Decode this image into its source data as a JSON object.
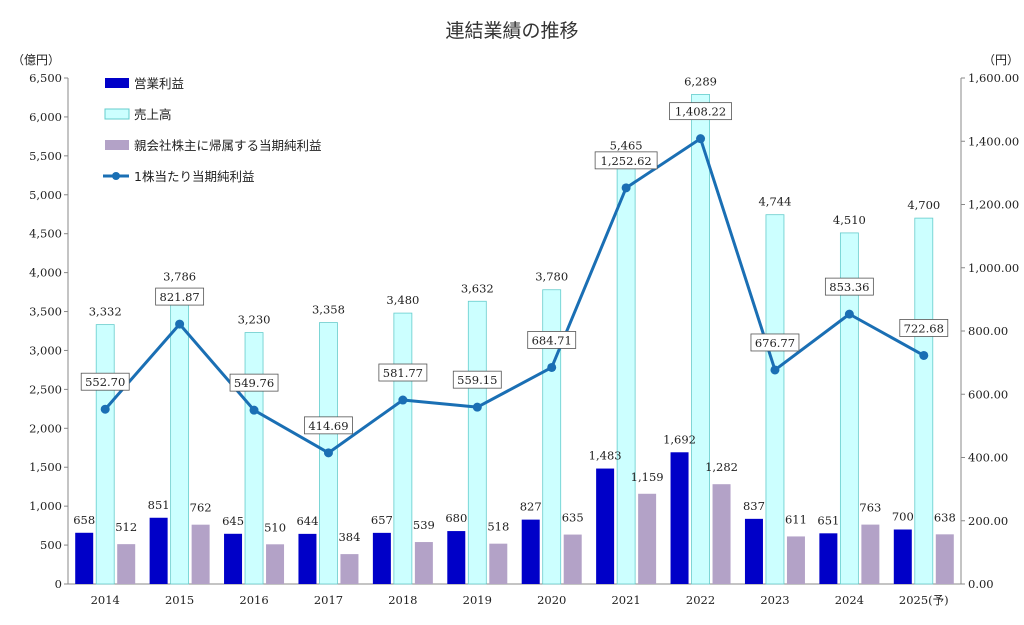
{
  "colors": {
    "operating_profit": "#0000c8",
    "sales_fill": "#ccffff",
    "sales_stroke": "#66cccc",
    "net_income": "#b3a2c7",
    "eps_line": "#1a6fb4",
    "axis": "#888888"
  },
  "chart_data": {
    "type": "bar",
    "title": "連結業績の推移",
    "y_left_unit": "（億円）",
    "y_right_unit": "（円）",
    "ylim_left": [
      0,
      6500
    ],
    "ylim_right": [
      0,
      1600
    ],
    "y_left_ticks": [
      "0",
      "500",
      "1,000",
      "1,500",
      "2,000",
      "2,500",
      "3,000",
      "3,500",
      "4,000",
      "4,500",
      "5,000",
      "5,500",
      "6,000",
      "6,500"
    ],
    "y_right_ticks": [
      "0.00",
      "200.00",
      "400.00",
      "600.00",
      "800.00",
      "1,000.00",
      "1,200.00",
      "1,400.00",
      "1,600.00"
    ],
    "categories": [
      "2014",
      "2015",
      "2016",
      "2017",
      "2018",
      "2019",
      "2020",
      "2021",
      "2022",
      "2023",
      "2024",
      "2025(予)"
    ],
    "series": [
      {
        "name": "営業利益",
        "axis": "left",
        "kind": "bar",
        "values": [
          658,
          851,
          645,
          644,
          657,
          680,
          827,
          1483,
          1692,
          837,
          651,
          700
        ],
        "labels": [
          "658",
          "851",
          "645",
          "644",
          "657",
          "680",
          "827",
          "1,483",
          "1,692",
          "837",
          "651",
          "700"
        ]
      },
      {
        "name": "売上高",
        "axis": "left",
        "kind": "bar",
        "values": [
          3332,
          3786,
          3230,
          3358,
          3480,
          3632,
          3780,
          5465,
          6289,
          4744,
          4510,
          4700
        ],
        "labels": [
          "3,332",
          "3,786",
          "3,230",
          "3,358",
          "3,480",
          "3,632",
          "3,780",
          "5,465",
          "6,289",
          "4,744",
          "4,510",
          "4,700"
        ]
      },
      {
        "name": "親会社株主に帰属する当期純利益",
        "axis": "left",
        "kind": "bar",
        "values": [
          512,
          762,
          510,
          384,
          539,
          518,
          635,
          1159,
          1282,
          611,
          763,
          638
        ],
        "labels": [
          "512",
          "762",
          "510",
          "384",
          "539",
          "518",
          "635",
          "1,159",
          "1,282",
          "611",
          "763",
          "638"
        ]
      },
      {
        "name": "1株当たり当期純利益",
        "axis": "right",
        "kind": "line",
        "values": [
          552.7,
          821.87,
          549.76,
          414.69,
          581.77,
          559.15,
          684.71,
          1252.62,
          1408.22,
          676.77,
          853.36,
          722.68
        ],
        "labels": [
          "552.70",
          "821.87",
          "549.76",
          "414.69",
          "581.77",
          "559.15",
          "684.71",
          "1,252.62",
          "1,408.22",
          "676.77",
          "853.36",
          "722.68"
        ]
      }
    ],
    "legend_position": "top-left",
    "grid": false
  }
}
